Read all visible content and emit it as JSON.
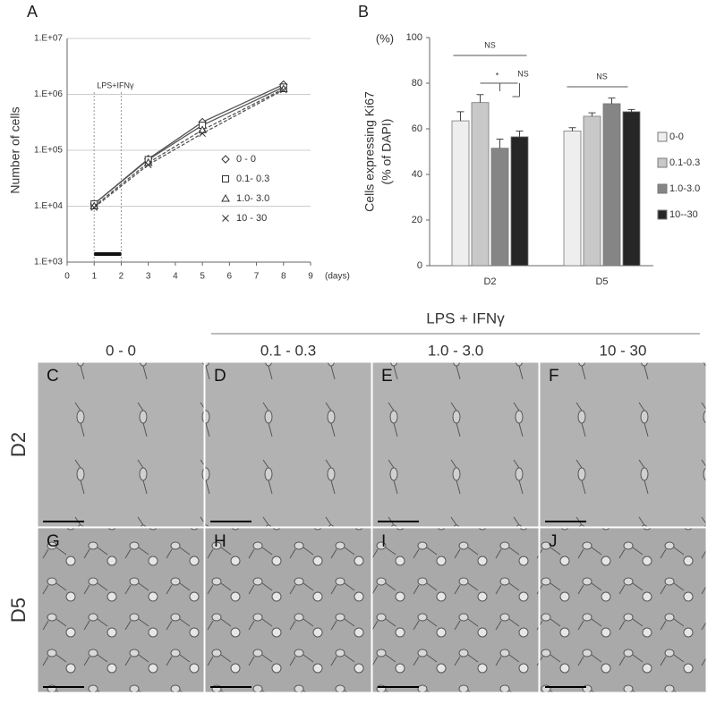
{
  "chart_data": [
    {
      "type": "line",
      "panel": "A",
      "ylabel": "Number of cells",
      "xlabel": "(days)",
      "annotation": "LPS+IFNγ",
      "log_scale_y": true,
      "grid": true,
      "legend": "right",
      "xlim": [
        0,
        9
      ],
      "xticks": [
        0,
        1,
        2,
        3,
        4,
        5,
        6,
        7,
        8,
        9
      ],
      "ylim": [
        1000,
        10000000
      ],
      "yticks": [
        {
          "value": 1000,
          "label": "1.E+03"
        },
        {
          "value": 10000,
          "label": "1.E+04"
        },
        {
          "value": 100000,
          "label": "1.E+05"
        },
        {
          "value": 1000000,
          "label": "1.E+06"
        },
        {
          "value": 10000000,
          "label": "1.E+07"
        }
      ],
      "treatment_period": [
        1,
        2
      ],
      "x": [
        1,
        3,
        5,
        8
      ],
      "series": [
        {
          "name": "0 - 0",
          "marker": "diamond",
          "dashed": false,
          "color": "#555555",
          "values": [
            11000,
            70000,
            320000,
            1500000
          ]
        },
        {
          "name": "0.1- 0.3",
          "marker": "square",
          "dashed": false,
          "color": "#555555",
          "values": [
            11000,
            68000,
            280000,
            1350000
          ]
        },
        {
          "name": "1.0- 3.0",
          "marker": "triangle",
          "dashed": true,
          "color": "#555555",
          "values": [
            10000,
            60000,
            230000,
            1250000
          ]
        },
        {
          "name": "10 - 30",
          "marker": "cross",
          "dashed": true,
          "color": "#555555",
          "values": [
            9500,
            55000,
            200000,
            1200000
          ]
        }
      ]
    },
    {
      "type": "bar",
      "panel": "B",
      "ylabel": [
        "Cells expressing Ki67",
        "(% of DAPI)"
      ],
      "yunit": "(%)",
      "legend": "right",
      "ylim": [
        0,
        100
      ],
      "yticks": [
        0,
        20,
        40,
        60,
        80,
        100
      ],
      "categories": [
        "D2",
        "D5"
      ],
      "annotations": [
        "NS",
        "*",
        "NS",
        "NS"
      ],
      "series": [
        {
          "name": "0-0",
          "color": "#eeeeee",
          "values": [
            63.5,
            59
          ],
          "errors": [
            4,
            1.5
          ]
        },
        {
          "name": "0.1-0.3",
          "color": "#c8c8c8",
          "values": [
            71.5,
            65.5
          ],
          "errors": [
            3.5,
            1.5
          ]
        },
        {
          "name": "1.0-3.0",
          "color": "#858585",
          "values": [
            51.5,
            71
          ],
          "errors": [
            4,
            2.5
          ]
        },
        {
          "name": "10--30",
          "color": "#262626",
          "values": [
            56.5,
            67.5
          ],
          "errors": [
            2.5,
            1
          ]
        }
      ]
    }
  ],
  "micrographs": {
    "header": "LPS + IFNγ",
    "columns": [
      "0 - 0",
      "0.1 - 0.3",
      "1.0 - 3.0",
      "10 - 30"
    ],
    "rows": [
      "D2",
      "D5"
    ],
    "panels": [
      [
        "C",
        "D",
        "E",
        "F"
      ],
      [
        "G",
        "H",
        "I",
        "J"
      ]
    ]
  }
}
